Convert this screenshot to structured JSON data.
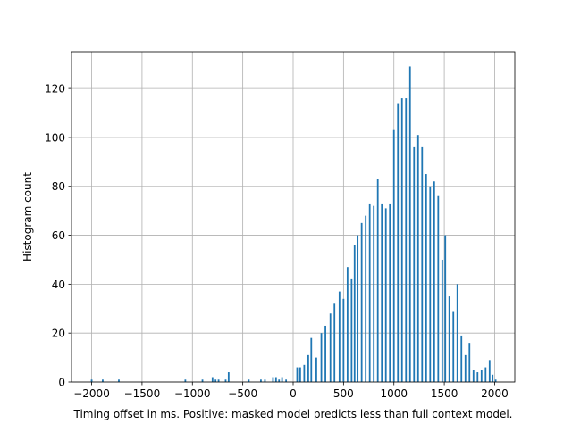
{
  "chart_data": {
    "type": "bar",
    "title": "",
    "xlabel": "Timing offset in ms. Positive: masked model predicts less than full context model.",
    "ylabel": "Histogram count",
    "xlim": [
      -2200,
      2200
    ],
    "ylim": [
      0,
      135
    ],
    "grid": true,
    "legend": "none",
    "bar_color": "#1f77b4",
    "bar_width": 16,
    "x_ticks": [
      -2000,
      -1500,
      -1000,
      -500,
      0,
      500,
      1000,
      1500,
      2000
    ],
    "x_tick_labels": [
      "−2000",
      "−1500",
      "−1000",
      "−500",
      "0",
      "500",
      "1000",
      "1500",
      "2000"
    ],
    "y_ticks": [
      0,
      20,
      40,
      60,
      80,
      100,
      120
    ],
    "y_tick_labels": [
      "0",
      "20",
      "40",
      "60",
      "80",
      "100",
      "120"
    ],
    "x": [
      -2000,
      -1890,
      -1730,
      -1070,
      -900,
      -800,
      -770,
      -740,
      -670,
      -640,
      -440,
      -320,
      -280,
      -200,
      -170,
      -140,
      -110,
      -70,
      40,
      70,
      110,
      150,
      180,
      230,
      280,
      320,
      370,
      410,
      460,
      500,
      540,
      580,
      610,
      640,
      680,
      720,
      760,
      800,
      840,
      880,
      920,
      960,
      1000,
      1040,
      1080,
      1120,
      1160,
      1200,
      1240,
      1280,
      1320,
      1360,
      1400,
      1440,
      1480,
      1510,
      1550,
      1590,
      1630,
      1670,
      1710,
      1750,
      1790,
      1830,
      1870,
      1910,
      1950,
      1980,
      2010
    ],
    "values": [
      1,
      1,
      1,
      1,
      1,
      2,
      1,
      1,
      1,
      4,
      1,
      1,
      1,
      2,
      2,
      1,
      2,
      1,
      6,
      6,
      7,
      11,
      18,
      10,
      20,
      23,
      28,
      32,
      37,
      34,
      47,
      42,
      56,
      60,
      65,
      68,
      73,
      72,
      83,
      73,
      71,
      73,
      103,
      114,
      116,
      116,
      129,
      96,
      101,
      96,
      85,
      80,
      82,
      76,
      50,
      60,
      35,
      29,
      40,
      19,
      11,
      16,
      5,
      4,
      5,
      6,
      9,
      3,
      1
    ]
  }
}
